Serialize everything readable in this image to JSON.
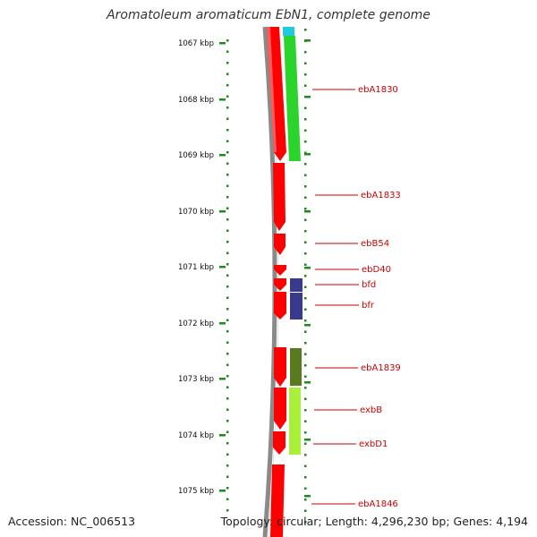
{
  "title": "Aromatoleum aromaticum EbN1, complete genome",
  "footer": {
    "accession": "Accession: NC_006513",
    "summary": "Topology: circular; Length: 4,296,230 bp; Genes: 4,194"
  },
  "colors": {
    "backbone": "#8a8a8a",
    "cds": "#ff0000",
    "ruler_tick": "#1f8a1f",
    "label": "#cc0000"
  },
  "scale": {
    "labels": [
      "1067 kbp",
      "1068 kbp",
      "1069 kbp",
      "1070 kbp",
      "1071 kbp",
      "1072 kbp",
      "1073 kbp",
      "1074 kbp",
      "1075 kbp"
    ]
  },
  "features": [
    {
      "name": "ebA1830",
      "label_color": "#cc0000"
    },
    {
      "name": "ebA1833",
      "label_color": "#cc0000"
    },
    {
      "name": "ebB54",
      "label_color": "#cc0000"
    },
    {
      "name": "ebD40",
      "label_color": "#cc0000"
    },
    {
      "name": "bfd",
      "label_color": "#cc0000"
    },
    {
      "name": "bfr",
      "label_color": "#cc0000"
    },
    {
      "name": "ebA1839",
      "label_color": "#cc0000"
    },
    {
      "name": "exbB",
      "label_color": "#cc0000"
    },
    {
      "name": "exbD1",
      "label_color": "#cc0000"
    },
    {
      "name": "ebA1846",
      "label_color": "#cc0000"
    }
  ],
  "category_tracks": [
    {
      "color": "#2bd42b"
    },
    {
      "color": "#20c8e0"
    },
    {
      "color": "#3a3a8c"
    },
    {
      "color": "#5a7a1f"
    },
    {
      "color": "#a8f03a"
    }
  ]
}
